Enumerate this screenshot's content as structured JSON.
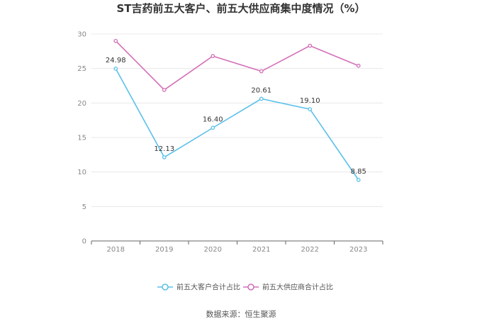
{
  "chart_data": {
    "type": "line",
    "title": "ST吉药前五大客户、前五大供应商集中度情况（%）",
    "categories": [
      "2018",
      "2019",
      "2020",
      "2021",
      "2022",
      "2023"
    ],
    "ylim": [
      0,
      30
    ],
    "yticks": [
      0,
      5,
      10,
      15,
      20,
      25,
      30
    ],
    "grid": true,
    "legend_position": "bottom",
    "series": [
      {
        "name": "前五大客户合计占比",
        "color": "#5bc0eb",
        "values": [
          24.98,
          12.13,
          16.4,
          20.61,
          19.1,
          8.85
        ],
        "labels": [
          "24.98",
          "12.13",
          "16.40",
          "20.61",
          "19.10",
          "8.85"
        ]
      },
      {
        "name": "前五大供应商合计占比",
        "color": "#d36fb8",
        "values": [
          29.0,
          21.9,
          26.8,
          24.6,
          28.3,
          25.4
        ]
      }
    ],
    "source": "数据来源：恒生聚源"
  }
}
